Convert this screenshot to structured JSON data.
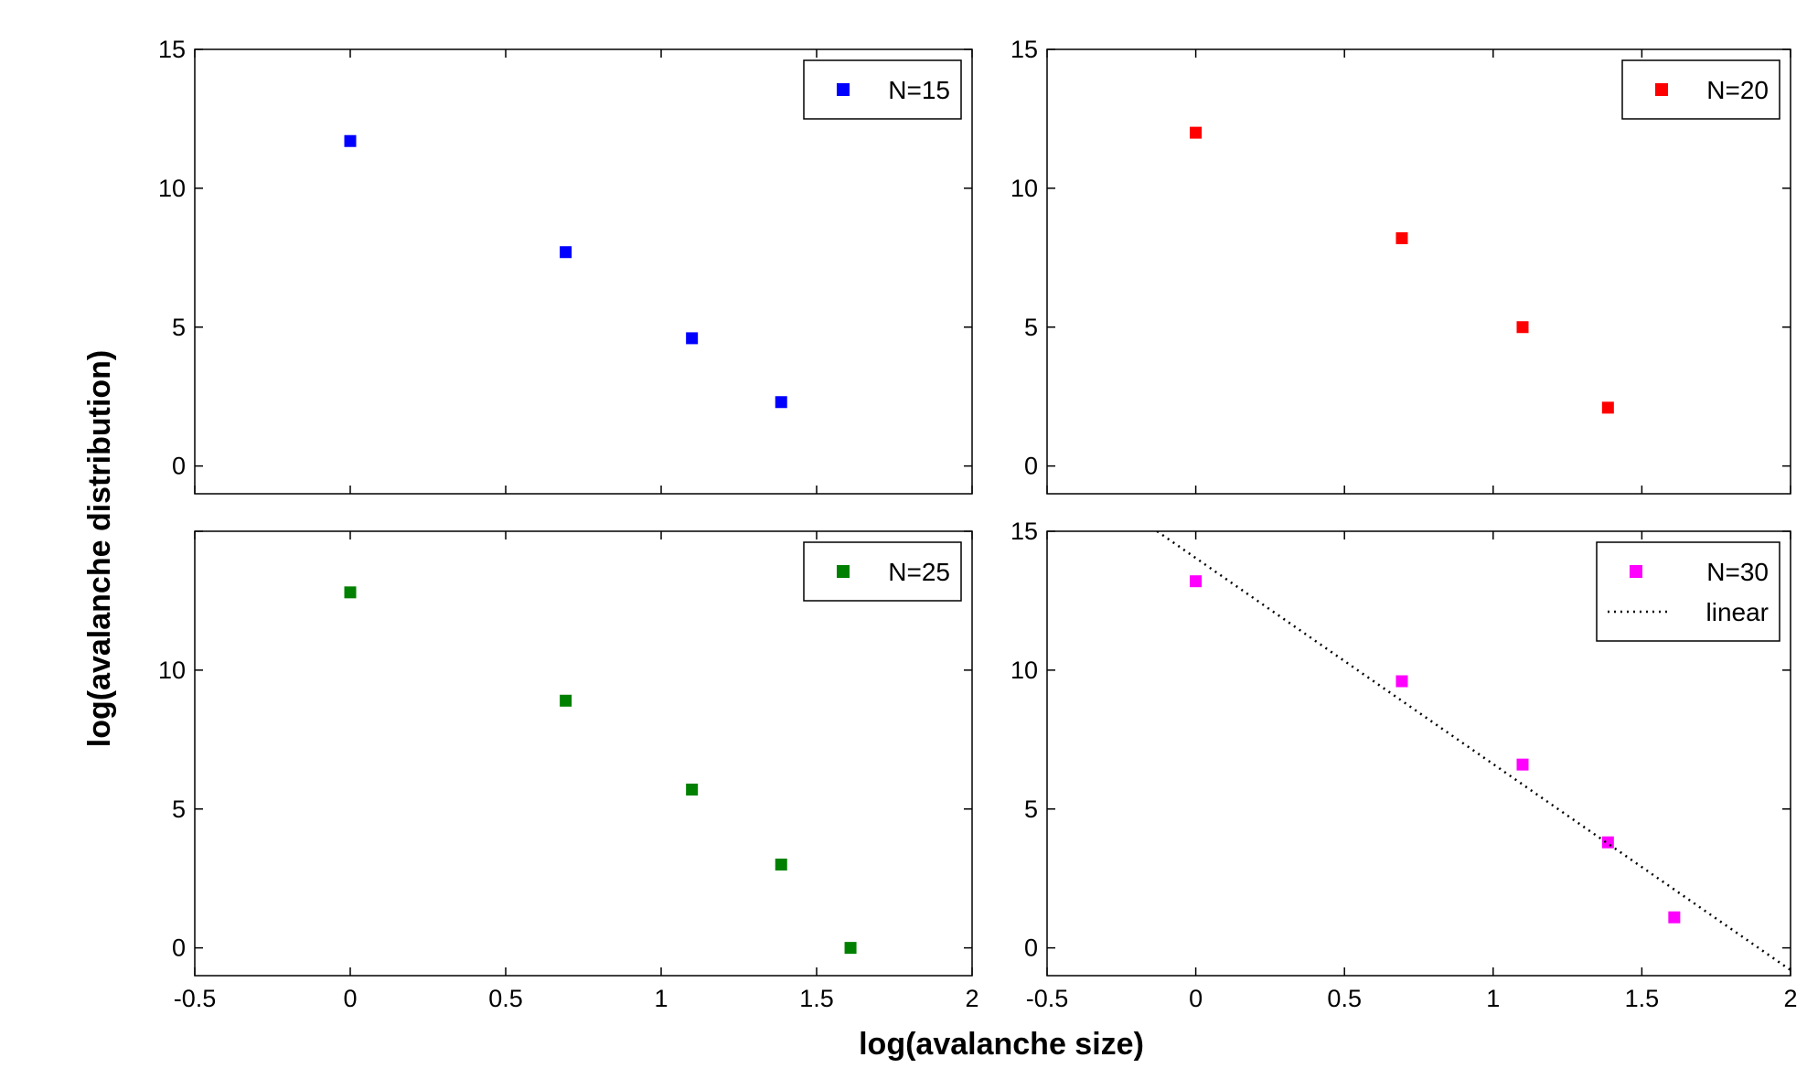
{
  "figure": {
    "xlabel": "log(avalanche size)",
    "ylabel": "log(avalanche distribution)"
  },
  "chart_data": [
    {
      "type": "scatter",
      "series": [
        {
          "name": "N=15",
          "color": "#0000ff",
          "marker": "square",
          "x": [
            0,
            0.693,
            1.099,
            1.386
          ],
          "y": [
            11.7,
            7.7,
            4.6,
            2.3
          ]
        }
      ],
      "xlim": [
        -0.5,
        2
      ],
      "ylim": [
        -1,
        15
      ],
      "xticks": [
        -0.5,
        0,
        0.5,
        1,
        1.5,
        2
      ],
      "xtick_labels": [],
      "yticks": [
        0,
        5,
        10,
        15
      ],
      "ytick_labels": [
        "0",
        "5",
        "10",
        "15"
      ],
      "legend": "top-right",
      "grid": false
    },
    {
      "type": "scatter",
      "series": [
        {
          "name": "N=20",
          "color": "#ff0000",
          "marker": "square",
          "x": [
            0,
            0.693,
            1.099,
            1.386
          ],
          "y": [
            12.0,
            8.2,
            5.0,
            2.1
          ]
        }
      ],
      "xlim": [
        -0.5,
        2
      ],
      "ylim": [
        -1,
        15
      ],
      "xticks": [
        -0.5,
        0,
        0.5,
        1,
        1.5,
        2
      ],
      "xtick_labels": [],
      "yticks": [
        0,
        5,
        10,
        15
      ],
      "ytick_labels": [
        "0",
        "5",
        "10",
        "15"
      ],
      "legend": "top-right",
      "grid": false
    },
    {
      "type": "scatter",
      "series": [
        {
          "name": "N=25",
          "color": "#008000",
          "marker": "square",
          "x": [
            0,
            0.693,
            1.099,
            1.386,
            1.609
          ],
          "y": [
            12.8,
            8.9,
            5.7,
            3.0,
            0.0
          ]
        }
      ],
      "xlim": [
        -0.5,
        2
      ],
      "ylim": [
        -1,
        15
      ],
      "xticks": [
        -0.5,
        0,
        0.5,
        1,
        1.5,
        2
      ],
      "xtick_labels": [
        "-0.5",
        "0",
        "0.5",
        "1",
        "1.5",
        "2"
      ],
      "yticks": [
        0,
        5,
        10,
        15
      ],
      "ytick_labels": [
        "0",
        "5",
        "10",
        ""
      ],
      "legend": "top-right",
      "grid": false
    },
    {
      "type": "scatter",
      "series": [
        {
          "name": "N=30",
          "color": "#ff00ff",
          "marker": "square",
          "x": [
            0,
            0.693,
            1.099,
            1.386,
            1.609
          ],
          "y": [
            13.2,
            9.6,
            6.6,
            3.8,
            1.1
          ]
        },
        {
          "name": "linear",
          "color": "#000000",
          "marker": "none",
          "line": "dotted",
          "x": [
            -0.13,
            2.0
          ],
          "y": [
            15.0,
            -0.8
          ]
        }
      ],
      "xlim": [
        -0.5,
        2
      ],
      "ylim": [
        -1,
        15
      ],
      "xticks": [
        -0.5,
        0,
        0.5,
        1,
        1.5,
        2
      ],
      "xtick_labels": [
        "-0.5",
        "0",
        "0.5",
        "1",
        "1.5",
        "2"
      ],
      "yticks": [
        0,
        5,
        10,
        15
      ],
      "ytick_labels": [
        "0",
        "5",
        "10",
        "15"
      ],
      "legend": "top-right",
      "grid": false
    }
  ]
}
